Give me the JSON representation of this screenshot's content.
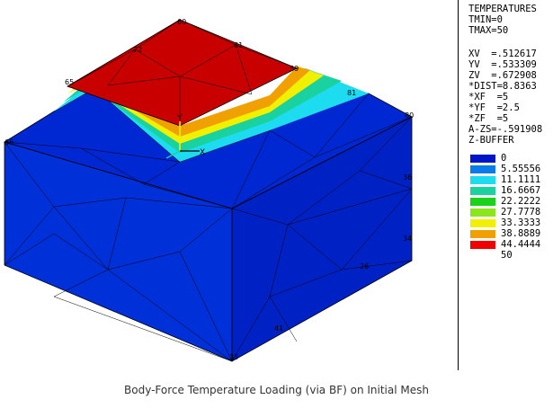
{
  "legend": {
    "title": "TEMPERATURES",
    "tmin": "TMIN=0",
    "tmax": "TMAX=50",
    "view": [
      "XV  =.512617",
      "YV  =.533309",
      "ZV  =.672908",
      "*DIST=8.8363",
      "*XF  =5",
      "*YF  =2.5",
      "*ZF  =5",
      "A-ZS=-.591908",
      "Z-BUFFER"
    ],
    "contours": [
      {
        "label": "0",
        "color": "#0014c8"
      },
      {
        "label": "5.55556",
        "color": "#0a7be8"
      },
      {
        "label": "11.1111",
        "color": "#1edcf0"
      },
      {
        "label": "16.6667",
        "color": "#19d2a0"
      },
      {
        "label": "22.2222",
        "color": "#19d219"
      },
      {
        "label": "27.7778",
        "color": "#8ce61e"
      },
      {
        "label": "33.3333",
        "color": "#f0f000"
      },
      {
        "label": "38.8889",
        "color": "#f0a000"
      },
      {
        "label": "44.4444",
        "color": "#f00000"
      },
      {
        "label": "50",
        "color": "#ffffff"
      }
    ]
  },
  "model": {
    "node_labels": [
      "60",
      "61",
      "72",
      "59",
      "65",
      "81",
      "80",
      "66",
      "36",
      "34",
      "26",
      "41",
      "35",
      "X",
      "Y"
    ],
    "colors": {
      "hot": "#c80000",
      "cold": "#0028d2",
      "mesh": "#000000",
      "warm_band": "#f5a000",
      "mid_band": "#19d2a0"
    }
  },
  "caption": "Body-Force Temperature Loading (via BF) on Initial Mesh"
}
